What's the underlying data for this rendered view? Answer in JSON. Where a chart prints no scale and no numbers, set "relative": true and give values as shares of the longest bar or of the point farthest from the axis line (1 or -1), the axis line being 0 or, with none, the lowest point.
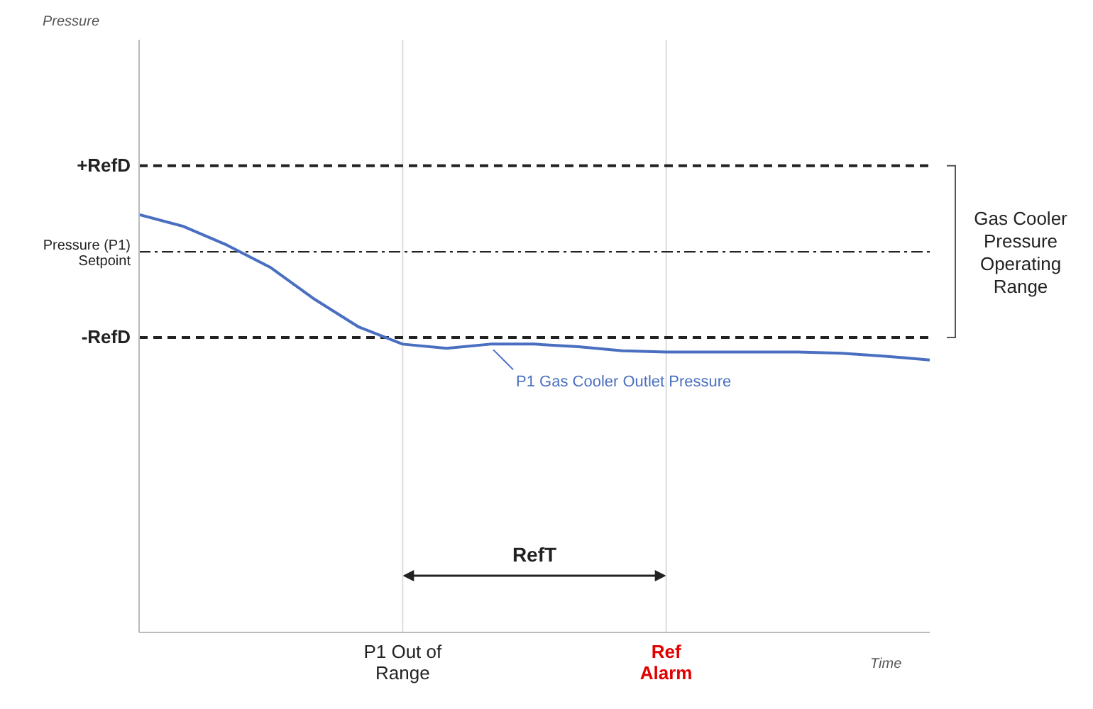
{
  "chart_data": {
    "type": "line",
    "relative": true,
    "xlabel": "Time",
    "marker": "none",
    "line_style": "solid",
    "categories": [
      null,
      null,
      null,
      null,
      null,
      null,
      null,
      null,
      null,
      null,
      null,
      null,
      null,
      null,
      null,
      null,
      null,
      null,
      null
    ],
    "series": [
      {
        "name": "P1 Gas Cooler Outlet Pressure",
        "color": "#4a6fc1",
        "values": [
          1.0,
          0.972,
          0.927,
          0.873,
          0.797,
          0.731,
          0.69,
          0.68,
          0.69,
          0.69,
          0.684,
          0.674,
          0.671,
          0.671,
          0.671,
          0.671,
          0.668,
          0.661,
          0.652
        ]
      }
    ],
    "ref_lines": [
      {
        "axis": "y",
        "value": 1.117,
        "label": "+RefD",
        "color": "#222222",
        "line_style": "dashed"
      },
      {
        "axis": "y",
        "value": 0.911,
        "label": "Pressure (P1) Setpoint",
        "color": "#222222",
        "line_style": "dashdot"
      },
      {
        "axis": "y",
        "value": 0.706,
        "label": "-RefD",
        "color": "#222222",
        "line_style": "dashed"
      }
    ],
    "annotations": [
      "Pressure",
      "Gas Cooler Pressure Operating Range",
      "RefT",
      "P1 Out of Range",
      "Ref Alarm"
    ]
  }
}
